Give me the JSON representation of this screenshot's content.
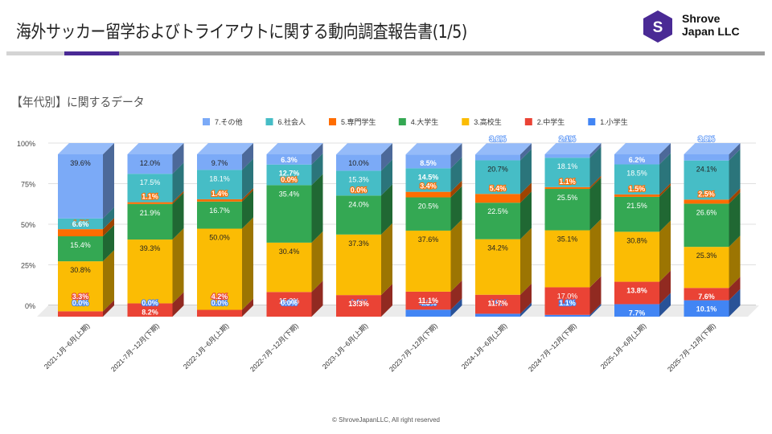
{
  "header": {
    "title": "海外サッカー留学およびトライアウトに関する動向調査報告書(1/5)",
    "logo_letter": "S",
    "company_line1": "Shrove",
    "company_line2": "Japan LLC",
    "brand_color": "#4a2a95",
    "progress": {
      "current_page": 1,
      "total_pages": 5
    }
  },
  "section": {
    "subtitle": "【年代別】に関するデータ"
  },
  "footer": {
    "copyright": "© ShroveJapanLLC, All right reserved"
  },
  "chart_data": {
    "type": "bar",
    "stacked": true,
    "percent_stacked": true,
    "style": "3d",
    "title": "",
    "xlabel": "",
    "ylabel": "",
    "ylim": [
      0,
      100
    ],
    "yticks": [
      "0%",
      "25%",
      "50%",
      "75%",
      "100%"
    ],
    "ytick_values": [
      0,
      25,
      50,
      75,
      100
    ],
    "grid": true,
    "legend_position": "top-right",
    "legend_order": [
      "7.その他",
      "6.社会人",
      "5.専門学生",
      "4.大学生",
      "3.高校生",
      "2.中学生",
      "1.小学生"
    ],
    "categories": [
      "2021-1月~6月(上期)",
      "2021-7月~12月(下期)",
      "2022-1月~6月(上期)",
      "2022-7月~12月(下期)",
      "2023-1月~6月(上期)",
      "2023-7月~12月(下期)",
      "2024-1月~6月(上期)",
      "2024-7月~12月(下期)",
      "2025-1月~6月(上期)",
      "2025-7月~12月(下期)"
    ],
    "series": [
      {
        "name": "1.小学生",
        "color": "#4285f4",
        "values": [
          0.0,
          0.0,
          0.0,
          0.0,
          0.0,
          4.3,
          1.8,
          1.1,
          7.7,
          10.1
        ]
      },
      {
        "name": "2.中学生",
        "color": "#ea4335",
        "values": [
          3.3,
          8.2,
          4.2,
          15.2,
          13.3,
          11.1,
          11.7,
          17.0,
          13.8,
          7.6
        ]
      },
      {
        "name": "3.高校生",
        "color": "#fbbc04",
        "values": [
          30.8,
          39.3,
          50.0,
          30.4,
          37.3,
          37.6,
          34.2,
          35.1,
          30.8,
          25.3
        ]
      },
      {
        "name": "4.大学生",
        "color": "#34a853",
        "values": [
          15.4,
          21.9,
          16.7,
          35.4,
          24.0,
          20.5,
          22.5,
          25.5,
          21.5,
          26.6
        ]
      },
      {
        "name": "5.専門学生",
        "color": "#ff6d01",
        "values": [
          4.4,
          1.1,
          1.4,
          0.0,
          0.0,
          3.4,
          5.4,
          1.1,
          1.5,
          2.5
        ]
      },
      {
        "name": "6.社会人",
        "color": "#46bdc6",
        "values": [
          6.6,
          17.5,
          18.1,
          12.7,
          15.3,
          14.5,
          20.7,
          18.1,
          18.5,
          24.1
        ]
      },
      {
        "name": "7.その他",
        "color": "#7baaf7",
        "values": [
          39.6,
          12.0,
          9.7,
          6.3,
          10.0,
          8.5,
          3.6,
          2.1,
          6.2,
          3.8
        ]
      }
    ],
    "value_format": "0.0%"
  }
}
